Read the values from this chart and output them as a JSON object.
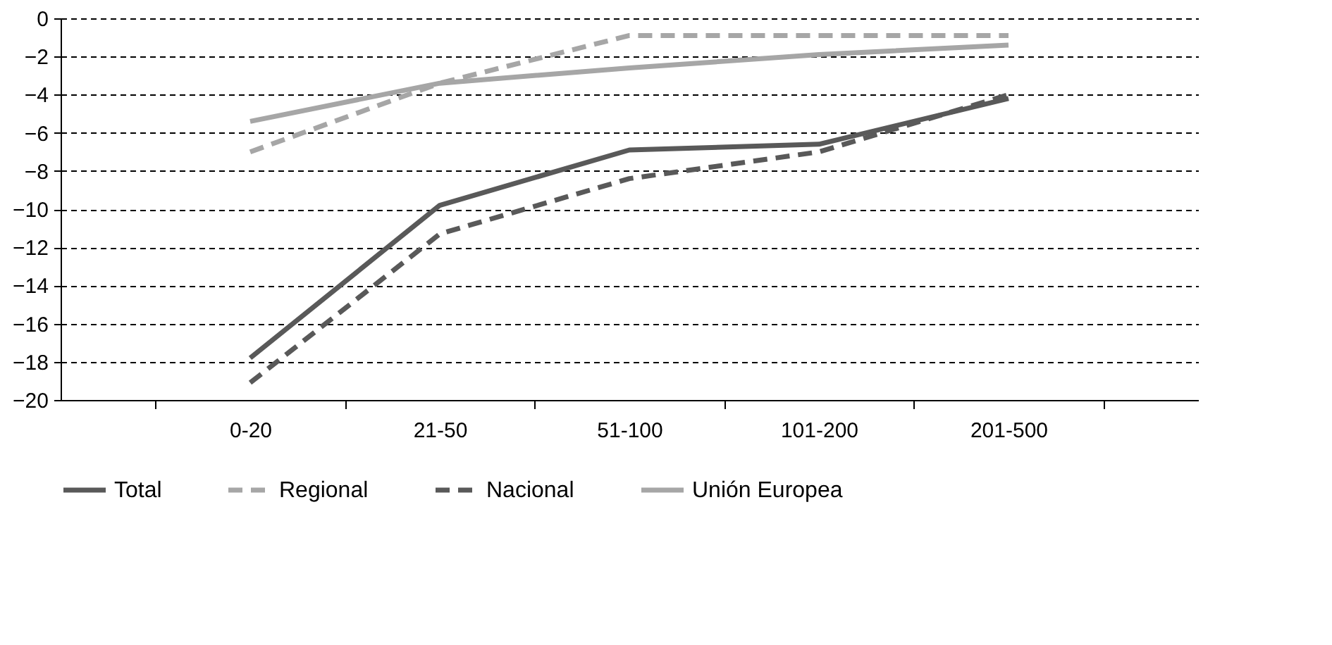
{
  "chart_data": {
    "type": "line",
    "categories": [
      "0-20",
      "21-50",
      "51-100",
      "101-200",
      "201-500"
    ],
    "series": [
      {
        "name": "Total",
        "color": "#595959",
        "line_style": "solid",
        "values": [
          -17.8,
          -9.8,
          -6.9,
          -6.6,
          -4.2
        ]
      },
      {
        "name": "Regional",
        "color": "#a6a6a6",
        "line_style": "dashed",
        "values": [
          -7.0,
          -3.4,
          -0.9,
          -0.9,
          -0.9
        ]
      },
      {
        "name": "Nacional",
        "color": "#595959",
        "line_style": "dashed",
        "values": [
          -19.1,
          -11.3,
          -8.4,
          -7.0,
          -4.0
        ]
      },
      {
        "name": "Unión Europea",
        "color": "#a6a6a6",
        "line_style": "solid",
        "values": [
          -5.4,
          -3.4,
          -2.6,
          -1.9,
          -1.4
        ]
      }
    ],
    "ylim": [
      -20,
      0
    ],
    "yticks": [
      -20,
      -18,
      -16,
      -14,
      -12,
      -10,
      -8,
      -6,
      -4,
      -2,
      0
    ],
    "grid": "y",
    "legend": "bottom",
    "marker": "none"
  }
}
